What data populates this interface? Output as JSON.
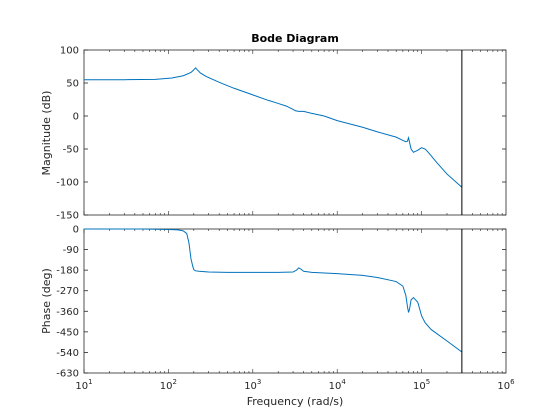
{
  "chart_data": {
    "type": "line",
    "title": "Bode Diagram",
    "xlabel": "Frequency  (rad/s)",
    "x_scale": "log",
    "xlim": [
      10,
      1000000
    ],
    "x_ticks": [
      {
        "value": 10,
        "base": "10",
        "exp": "1"
      },
      {
        "value": 100,
        "base": "10",
        "exp": "2"
      },
      {
        "value": 1000,
        "base": "10",
        "exp": "3"
      },
      {
        "value": 10000,
        "base": "10",
        "exp": "4"
      },
      {
        "value": 100000,
        "base": "10",
        "exp": "5"
      },
      {
        "value": 1000000,
        "base": "10",
        "exp": "6"
      }
    ],
    "cutoff_line_x": 300000,
    "line_color": "#0072bd",
    "panels": [
      {
        "ylabel": "Magnitude (dB)",
        "ylim": [
          -150,
          100
        ],
        "y_ticks": [
          "100",
          "50",
          "0",
          "-50",
          "-100",
          "-150"
        ],
        "y_tick_values": [
          100,
          50,
          0,
          -50,
          -100,
          -150
        ],
        "series": [
          {
            "x": [
              10,
              30,
              70,
              110,
              150,
              185,
              200,
              210,
              220,
              240,
              280,
              400,
              600,
              1000,
              1500,
              2000,
              2500,
              3000,
              3200,
              3500,
              4000,
              5000,
              7000,
              10000,
              20000,
              30000,
              50000,
              60000,
              65000,
              68000,
              70000,
              75000,
              80000,
              90000,
              100000,
              110000,
              120000,
              150000,
              200000,
              300000
            ],
            "y": [
              55,
              55,
              55.5,
              57.5,
              61,
              66,
              70,
              73,
              70,
              65,
              60,
              51,
              42,
              32,
              24,
              19,
              15,
              10,
              8,
              7,
              7,
              4,
              0,
              -7,
              -17,
              -24,
              -32,
              -37,
              -39,
              -38,
              -33,
              -50,
              -55,
              -52,
              -48,
              -50,
              -55,
              -70,
              -88,
              -108
            ]
          }
        ]
      },
      {
        "ylabel": "Phase (deg)",
        "ylim": [
          -630,
          0
        ],
        "y_ticks": [
          "0",
          "-90",
          "-180",
          "-270",
          "-360",
          "-450",
          "-540",
          "-630"
        ],
        "y_tick_values": [
          0,
          -90,
          -180,
          -270,
          -360,
          -450,
          -540,
          -630
        ],
        "series": [
          {
            "x": [
              10,
              50,
              100,
              130,
              150,
              165,
              175,
              185,
              195,
              200,
              210,
              230,
              300,
              500,
              1000,
              2000,
              3000,
              3300,
              3500,
              3700,
              4000,
              5000,
              10000,
              20000,
              30000,
              50000,
              60000,
              65000,
              68000,
              70000,
              72000,
              75000,
              80000,
              90000,
              100000,
              110000,
              130000,
              200000,
              300000
            ],
            "y": [
              0,
              0,
              -2,
              -4,
              -8,
              -20,
              -60,
              -130,
              -165,
              -178,
              -183,
              -185,
              -188,
              -190,
              -190,
              -190,
              -188,
              -180,
              -170,
              -175,
              -185,
              -190,
              -195,
              -203,
              -212,
              -230,
              -250,
              -290,
              -340,
              -365,
              -350,
              -310,
              -300,
              -320,
              -380,
              -410,
              -440,
              -490,
              -538
            ]
          }
        ]
      }
    ]
  }
}
